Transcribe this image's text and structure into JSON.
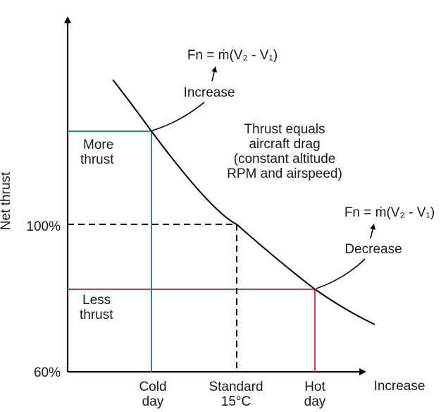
{
  "axes": {
    "y_label": "Net thrust",
    "x_end_label": "Increase",
    "y_ticks": {
      "high": "100%",
      "low": "60%"
    }
  },
  "x_ticks": {
    "cold": [
      "Cold",
      "day"
    ],
    "standard": [
      "Standard",
      "15°C"
    ],
    "hot": [
      "Hot",
      "day"
    ]
  },
  "regions": {
    "more": [
      "More",
      "thrust"
    ],
    "less": [
      "Less",
      "thrust"
    ]
  },
  "annotations": {
    "top_formula": "Fn = ṁ(V₂ - V₁)",
    "top_change": "Increase",
    "right_formula": "Fn = ṁ(V₂ - V₁)",
    "right_change": "Decrease",
    "curve_note": [
      "Thrust equals",
      "aircraft drag",
      "(constant altitude",
      "RPM and airspeed)"
    ]
  },
  "colors": {
    "cold": "#2b7fcf",
    "hot": "#d23a4a",
    "axis": "#000000",
    "curve": "#000000"
  }
}
